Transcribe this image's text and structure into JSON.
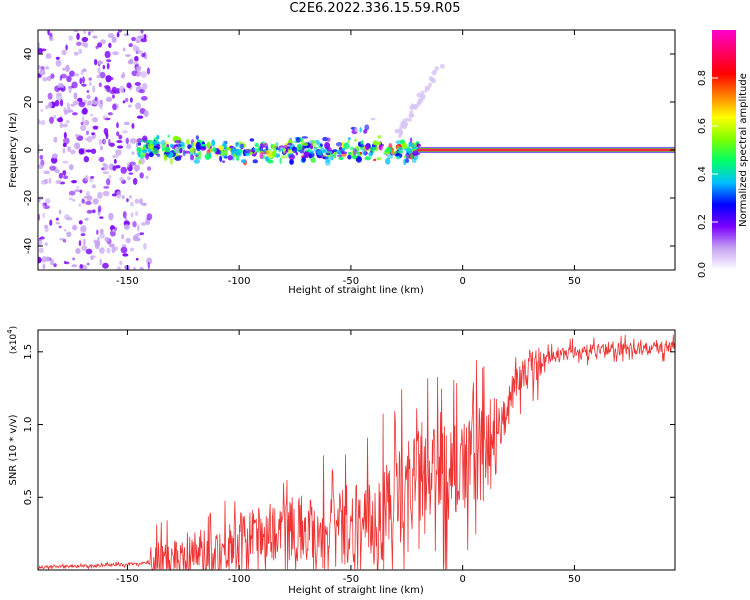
{
  "title": "C2E6.2022.336.15.59.R05",
  "chart_data": [
    {
      "type": "heatmap",
      "xlabel": "Height of straight line (km)",
      "ylabel": "Frequency (Hz)",
      "xlim": [
        -190,
        95
      ],
      "ylim": [
        -50,
        50
      ],
      "xticks": [
        -150,
        -100,
        -50,
        0,
        50
      ],
      "yticks": [
        -40,
        -20,
        0,
        20,
        40
      ],
      "colorbar": {
        "label": "Normalized spectral amplitude",
        "range": [
          0.0,
          1.0
        ],
        "ticks": [
          "0.0",
          "0.2",
          "0.4",
          "0.6",
          "0.8"
        ],
        "colors": [
          "#ffffff",
          "#c6a3f2",
          "#7a00ff",
          "#0000ff",
          "#00bfff",
          "#00ff66",
          "#80ff00",
          "#ffff00",
          "#ff8000",
          "#ff0000",
          "#ff0066",
          "#ff00cc"
        ]
      },
      "features": [
        {
          "x_range": [
            -190,
            -140
          ],
          "freq_range": [
            -50,
            50
          ],
          "amplitude": 0.15
        },
        {
          "x_range": [
            -145,
            -20
          ],
          "freq_range": [
            -5,
            5
          ],
          "amplitude": 0.45
        },
        {
          "x_range": [
            -50,
            -40
          ],
          "freq_range": [
            5,
            13
          ],
          "amplitude": 0.3
        },
        {
          "x_range": [
            -30,
            -10
          ],
          "freq_range": [
            5,
            35
          ],
          "amplitude": 0.05
        },
        {
          "x_range": [
            -20,
            95
          ],
          "freq_range": [
            -1,
            1
          ],
          "amplitude": 0.95
        }
      ]
    },
    {
      "type": "line",
      "xlabel": "Height of straight line (km)",
      "ylabel": "SNR (10 * v/v)",
      "multiplier": "(x10",
      "multiplier_exp": "4",
      "multiplier_close": ")",
      "xlim": [
        -190,
        95
      ],
      "ylim": [
        0,
        16500
      ],
      "xticks": [
        -150,
        -100,
        -50,
        0,
        50
      ],
      "yticks": [
        {
          "value": 5000,
          "label": "0.5"
        },
        {
          "value": 10000,
          "label": "1.0"
        },
        {
          "value": 15000,
          "label": "1.5"
        }
      ],
      "color": "#ee3333",
      "x": [
        -190,
        -160,
        -140,
        -130,
        -120,
        -110,
        -100,
        -90,
        -80,
        -70,
        -60,
        -50,
        -40,
        -30,
        -25,
        -20,
        -15,
        -10,
        -5,
        0,
        5,
        10,
        15,
        20,
        25,
        30,
        35,
        40,
        50,
        60,
        70,
        80,
        90,
        95
      ],
      "y": [
        200,
        300,
        500,
        900,
        1200,
        1300,
        2000,
        2500,
        2800,
        2900,
        2900,
        3000,
        3200,
        4800,
        5800,
        6300,
        6200,
        6500,
        6700,
        6900,
        7500,
        8300,
        9500,
        11500,
        13000,
        13800,
        14300,
        14700,
        15000,
        15100,
        15200,
        15200,
        15300,
        15300
      ]
    }
  ]
}
